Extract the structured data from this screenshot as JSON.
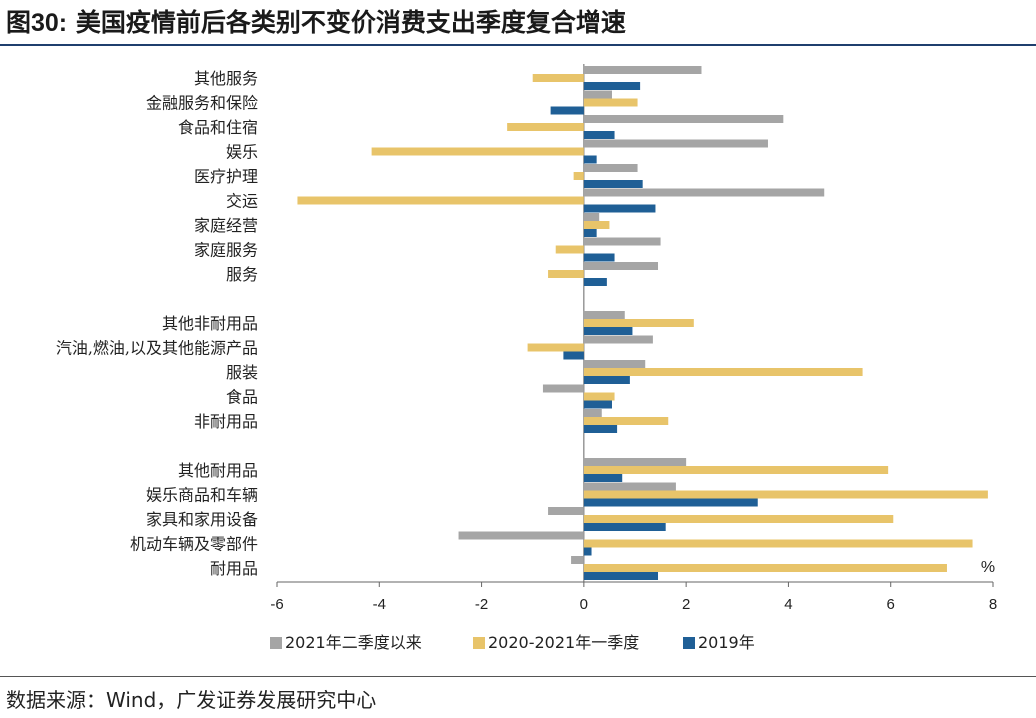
{
  "header": {
    "fig_label": "图30:",
    "fig_title": "美国疫情前后各类别不变价消费支出季度复合增速"
  },
  "footer": {
    "source": "数据来源：Wind，广发证券发展研究中心"
  },
  "chart_data": {
    "type": "bar",
    "orientation": "horizontal",
    "title": "美国疫情前后各类别不变价消费支出季度复合增速",
    "unit_label": "%",
    "xlim": [
      -6,
      8
    ],
    "xticks": [
      "-6",
      "-4",
      "-2",
      "0",
      "2",
      "4",
      "6",
      "8"
    ],
    "categories": [
      "其他服务",
      "金融服务和保险",
      "食品和住宿",
      "娱乐",
      "医疗护理",
      "交运",
      "家庭经营",
      "家庭服务",
      "服务",
      "",
      "其他非耐用品",
      "汽油,燃油,以及其他能源产品",
      "服装",
      "食品",
      "非耐用品",
      "",
      "其他耐用品",
      "娱乐商品和车辆",
      "家具和家用设备",
      "机动车辆及零部件",
      "耐用品"
    ],
    "series": [
      {
        "name": "2021年二季度以来",
        "color": "#a5a5a5",
        "values": [
          2.3,
          0.55,
          3.9,
          3.6,
          1.05,
          4.7,
          0.3,
          1.5,
          1.45,
          null,
          0.8,
          1.35,
          1.2,
          -0.8,
          0.35,
          null,
          2.0,
          1.8,
          -0.7,
          -2.45,
          -0.25
        ]
      },
      {
        "name": "2020-2021年一季度",
        "color": "#e8c46a",
        "values": [
          -1.0,
          1.05,
          -1.5,
          -4.15,
          -0.2,
          -5.6,
          0.5,
          -0.55,
          -0.7,
          null,
          2.15,
          -1.1,
          5.45,
          0.6,
          1.65,
          null,
          5.95,
          7.9,
          6.05,
          7.6,
          7.1
        ]
      },
      {
        "name": "2019年",
        "color": "#1f5f96",
        "values": [
          1.1,
          -0.65,
          0.6,
          0.25,
          1.15,
          1.4,
          0.25,
          0.6,
          0.45,
          null,
          0.95,
          -0.4,
          0.9,
          0.55,
          0.65,
          null,
          0.75,
          3.4,
          1.6,
          0.15,
          1.45
        ]
      }
    ]
  }
}
